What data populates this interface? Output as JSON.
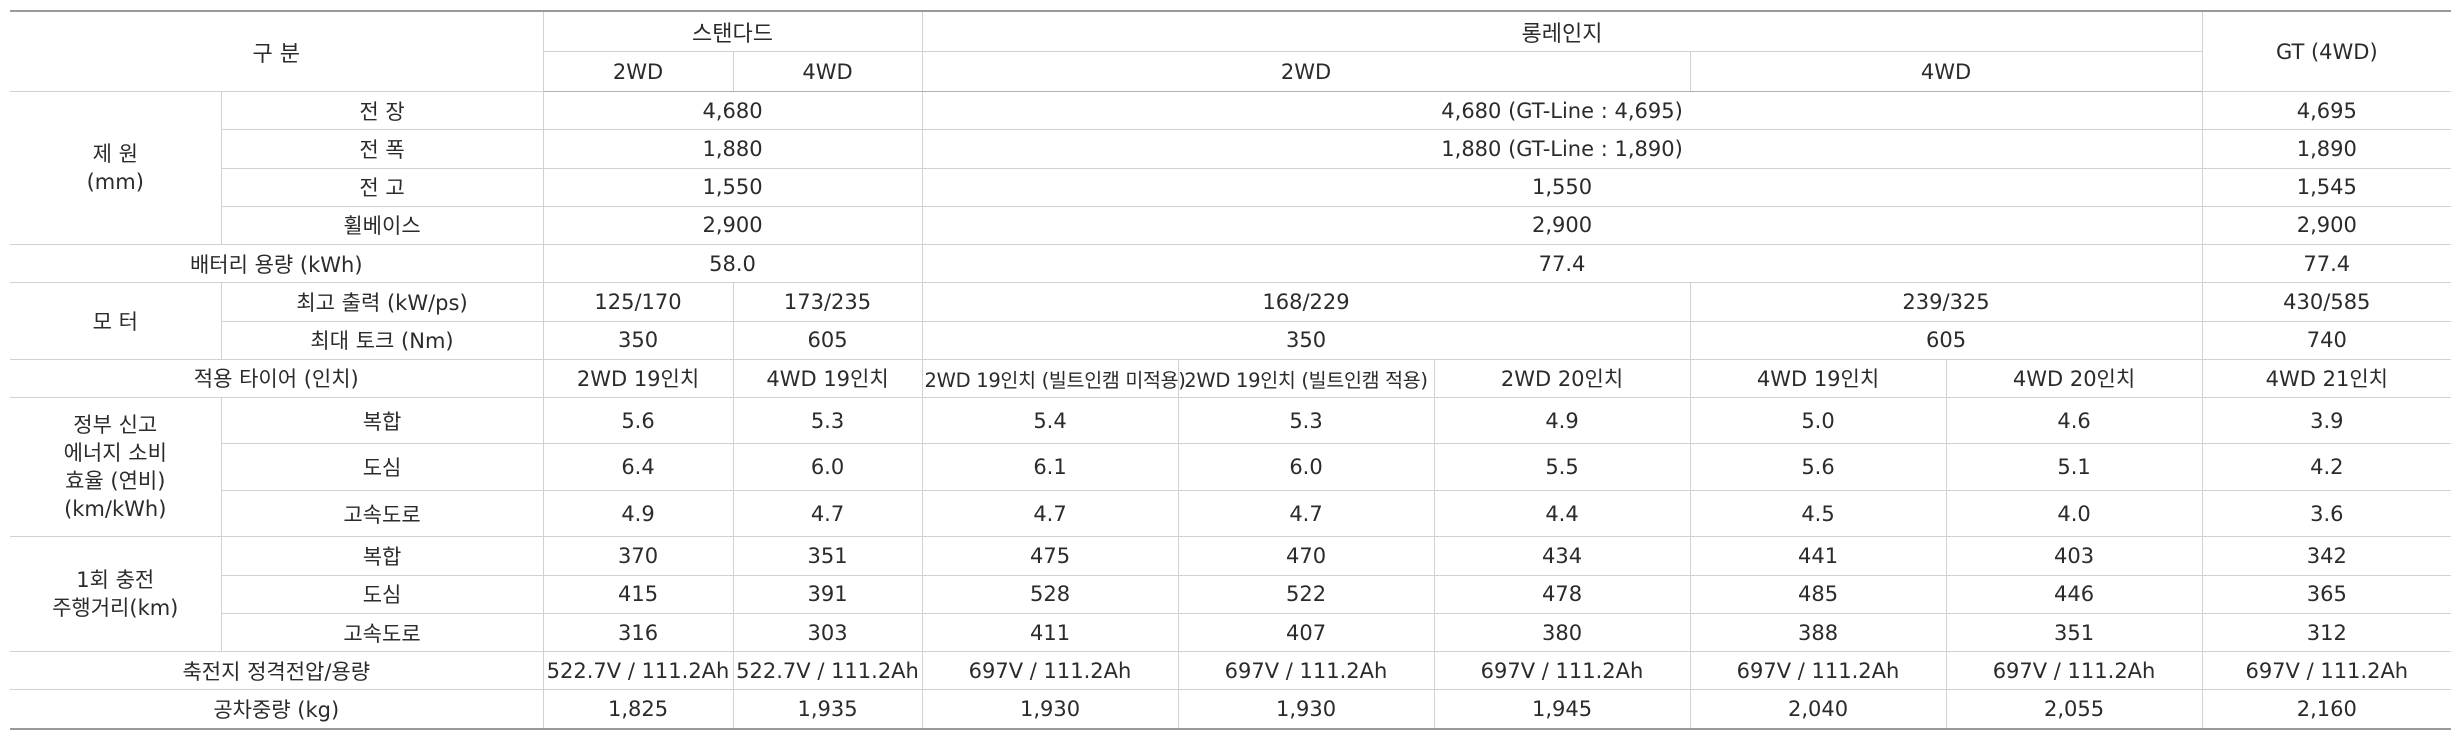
{
  "header": {
    "category": "구 분",
    "standard": "스탠다드",
    "long_range": "롱레인지",
    "gt": "GT (4WD)",
    "std_2wd": "2WD",
    "std_4wd": "4WD",
    "lr_2wd": "2WD",
    "lr_4wd": "4WD"
  },
  "dimensions": {
    "group_line1": "제 원",
    "group_line2": "(mm)",
    "length": {
      "label": "전 장",
      "standard": "4,680",
      "long_range": "4,680 (GT-Line : 4,695)",
      "gt": "4,695"
    },
    "width": {
      "label": "전 폭",
      "standard": "1,880",
      "long_range": "1,880 (GT-Line : 1,890)",
      "gt": "1,890"
    },
    "height": {
      "label": "전 고",
      "standard": "1,550",
      "long_range": "1,550",
      "gt": "1,545"
    },
    "wheelbase": {
      "label": "휠베이스",
      "standard": "2,900",
      "long_range": "2,900",
      "gt": "2,900"
    }
  },
  "battery": {
    "label": "배터리 용량 (kWh)",
    "standard": "58.0",
    "long_range": "77.4",
    "gt": "77.4"
  },
  "motor": {
    "group": "모 터",
    "power": {
      "label": "최고 출력 (kW/ps)",
      "std_2wd": "125/170",
      "std_4wd": "173/235",
      "lr_2wd": "168/229",
      "lr_4wd": "239/325",
      "gt": "430/585"
    },
    "torque": {
      "label": "최대 토크 (Nm)",
      "std_2wd": "350",
      "std_4wd": "605",
      "lr_2wd": "350",
      "lr_4wd": "605",
      "gt": "740"
    }
  },
  "tires": {
    "label": "적용 타이어 (인치)",
    "values": [
      "2WD 19인치",
      "4WD 19인치",
      "2WD 19인치 (빌트인캠 미적용)",
      "2WD 19인치 (빌트인캠 적용)",
      "2WD 20인치",
      "4WD 19인치",
      "4WD 20인치",
      "4WD 21인치"
    ]
  },
  "efficiency": {
    "group_line1": "정부 신고",
    "group_line2": "에너지 소비",
    "group_line3": "효율 (연비)",
    "group_line4": "(km/kWh)",
    "rows": [
      {
        "label": "복합",
        "values": [
          "5.6",
          "5.3",
          "5.4",
          "5.3",
          "4.9",
          "5.0",
          "4.6",
          "3.9"
        ]
      },
      {
        "label": "도심",
        "values": [
          "6.4",
          "6.0",
          "6.1",
          "6.0",
          "5.5",
          "5.6",
          "5.1",
          "4.2"
        ]
      },
      {
        "label": "고속도로",
        "values": [
          "4.9",
          "4.7",
          "4.7",
          "4.7",
          "4.4",
          "4.5",
          "4.0",
          "3.6"
        ]
      }
    ]
  },
  "range": {
    "group_line1": "1회 충전",
    "group_line2": "주행거리(km)",
    "rows": [
      {
        "label": "복합",
        "values": [
          "370",
          "351",
          "475",
          "470",
          "434",
          "441",
          "403",
          "342"
        ]
      },
      {
        "label": "도심",
        "values": [
          "415",
          "391",
          "528",
          "522",
          "478",
          "485",
          "446",
          "365"
        ]
      },
      {
        "label": "고속도로",
        "values": [
          "316",
          "303",
          "411",
          "407",
          "380",
          "388",
          "351",
          "312"
        ]
      }
    ]
  },
  "voltage": {
    "label": "축전지 정격전압/용량",
    "values": [
      "522.7V / 111.2Ah",
      "522.7V / 111.2Ah",
      "697V / 111.2Ah",
      "697V / 111.2Ah",
      "697V / 111.2Ah",
      "697V / 111.2Ah",
      "697V / 111.2Ah",
      "697V / 111.2Ah"
    ]
  },
  "curb_weight": {
    "label": "공차중량 (kg)",
    "values": [
      "1,825",
      "1,935",
      "1,930",
      "1,930",
      "1,945",
      "2,040",
      "2,055",
      "2,160"
    ]
  }
}
